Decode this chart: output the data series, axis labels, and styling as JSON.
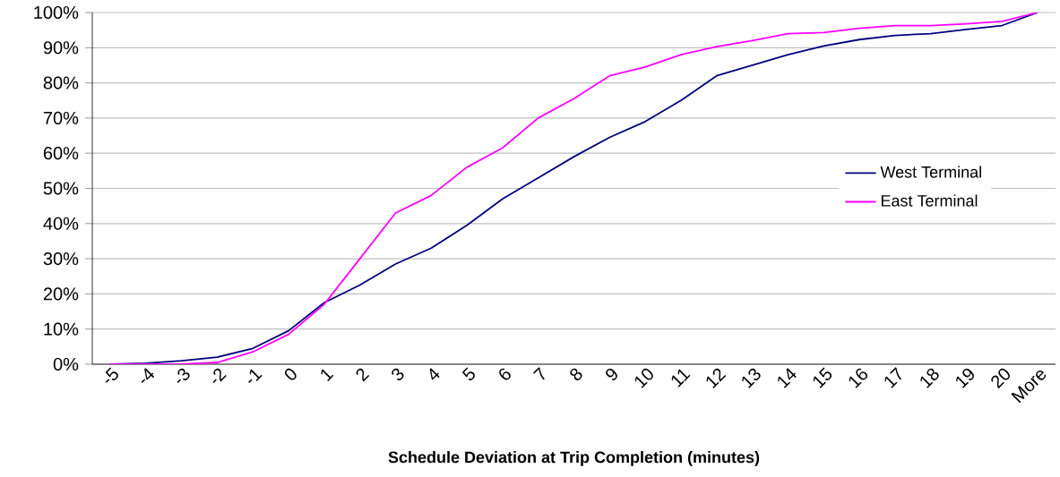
{
  "chart_data": {
    "type": "line",
    "xlabel": "Schedule Deviation at Trip Completion (minutes)",
    "categories": [
      "-5",
      "-4",
      "-3",
      "-2",
      "-1",
      "0",
      "1",
      "2",
      "3",
      "4",
      "5",
      "6",
      "7",
      "8",
      "9",
      "10",
      "11",
      "12",
      "13",
      "14",
      "15",
      "16",
      "17",
      "18",
      "19",
      "20",
      "More"
    ],
    "series": [
      {
        "name": "West Terminal",
        "color": "#000080",
        "values": [
          0,
          0.3,
          1,
          2,
          4.5,
          9.5,
          17.5,
          22.5,
          28.5,
          33,
          39.5,
          47,
          53,
          59,
          64.5,
          69,
          75,
          82,
          85,
          88,
          90.5,
          92.3,
          93.5,
          94,
          95.2,
          96.3,
          100
        ]
      },
      {
        "name": "East Terminal",
        "color": "#ff00ff",
        "values": [
          0,
          0,
          0,
          0.5,
          3.5,
          8.5,
          17,
          30,
          43,
          48,
          56,
          61.5,
          70,
          75.5,
          82,
          84.5,
          88,
          90.3,
          92,
          94,
          94.3,
          95.5,
          96.3,
          96.3,
          96.8,
          97.5,
          100
        ]
      }
    ],
    "ylim": [
      0,
      100
    ],
    "yticks": [
      {
        "value": 0,
        "label": "0%"
      },
      {
        "value": 10,
        "label": "10%"
      },
      {
        "value": 20,
        "label": "20%"
      },
      {
        "value": 30,
        "label": "30%"
      },
      {
        "value": 40,
        "label": "40%"
      },
      {
        "value": 50,
        "label": "50%"
      },
      {
        "value": 60,
        "label": "60%"
      },
      {
        "value": 70,
        "label": "70%"
      },
      {
        "value": 80,
        "label": "80%"
      },
      {
        "value": 90,
        "label": "90%"
      },
      {
        "value": 100,
        "label": "100%"
      }
    ],
    "grid": "y",
    "legend": "right",
    "marker": "none",
    "line_style": "solid"
  }
}
